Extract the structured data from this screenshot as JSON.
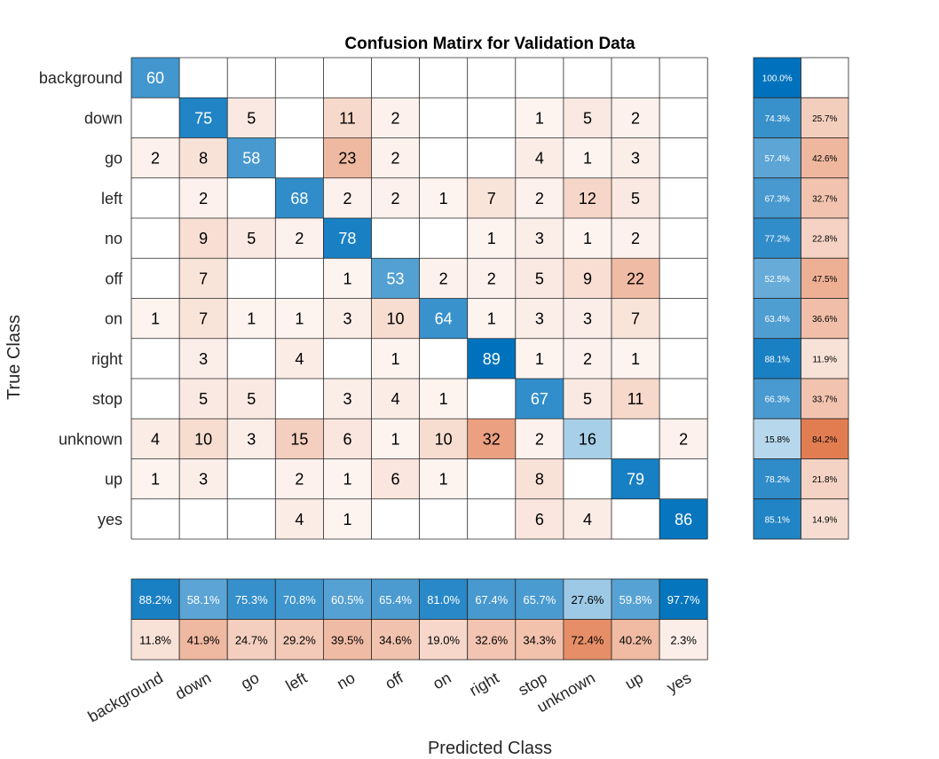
{
  "chart_data": {
    "type": "heatmap",
    "title": "Confusion Matirx for Validation Data",
    "xlabel": "Predicted Class",
    "ylabel": "True Class",
    "classes": [
      "background",
      "down",
      "go",
      "left",
      "no",
      "off",
      "on",
      "right",
      "stop",
      "unknown",
      "up",
      "yes"
    ],
    "matrix": [
      [
        60,
        0,
        0,
        0,
        0,
        0,
        0,
        0,
        0,
        0,
        0,
        0
      ],
      [
        0,
        75,
        5,
        0,
        11,
        2,
        0,
        0,
        1,
        5,
        2,
        0
      ],
      [
        2,
        8,
        58,
        0,
        23,
        2,
        0,
        0,
        4,
        1,
        3,
        0
      ],
      [
        0,
        2,
        0,
        68,
        2,
        2,
        1,
        7,
        2,
        12,
        5,
        0
      ],
      [
        0,
        9,
        5,
        2,
        78,
        0,
        0,
        1,
        3,
        1,
        2,
        0
      ],
      [
        0,
        7,
        0,
        0,
        1,
        53,
        2,
        2,
        5,
        9,
        22,
        0
      ],
      [
        1,
        7,
        1,
        1,
        3,
        10,
        64,
        1,
        3,
        3,
        7,
        0
      ],
      [
        0,
        3,
        0,
        4,
        0,
        1,
        0,
        89,
        1,
        2,
        1,
        0
      ],
      [
        0,
        5,
        5,
        0,
        3,
        4,
        1,
        0,
        67,
        5,
        11,
        0
      ],
      [
        4,
        10,
        3,
        15,
        6,
        1,
        10,
        32,
        2,
        16,
        0,
        2
      ],
      [
        1,
        3,
        0,
        2,
        1,
        6,
        1,
        0,
        8,
        0,
        79,
        0
      ],
      [
        0,
        0,
        0,
        4,
        1,
        0,
        0,
        0,
        6,
        4,
        0,
        86
      ]
    ],
    "row_summary": {
      "correct": [
        "100.0%",
        "74.3%",
        "57.4%",
        "67.3%",
        "77.2%",
        "52.5%",
        "63.4%",
        "88.1%",
        "66.3%",
        "15.8%",
        "78.2%",
        "85.1%"
      ],
      "incorrect": [
        "",
        "25.7%",
        "42.6%",
        "32.7%",
        "22.8%",
        "47.5%",
        "36.6%",
        "11.9%",
        "33.7%",
        "84.2%",
        "21.8%",
        "14.9%"
      ]
    },
    "column_summary": {
      "correct": [
        "88.2%",
        "58.1%",
        "75.3%",
        "70.8%",
        "60.5%",
        "65.4%",
        "81.0%",
        "67.4%",
        "65.7%",
        "27.6%",
        "59.8%",
        "97.7%"
      ],
      "incorrect": [
        "11.8%",
        "41.9%",
        "24.7%",
        "29.2%",
        "39.5%",
        "34.6%",
        "19.0%",
        "32.6%",
        "34.3%",
        "72.4%",
        "40.2%",
        "2.3%"
      ]
    },
    "colors": {
      "diagonal": "#0072BD",
      "off_diagonal": "#D95319",
      "grid": "#262626",
      "text_dark": "#000000",
      "text_light": "#ffffff"
    }
  }
}
